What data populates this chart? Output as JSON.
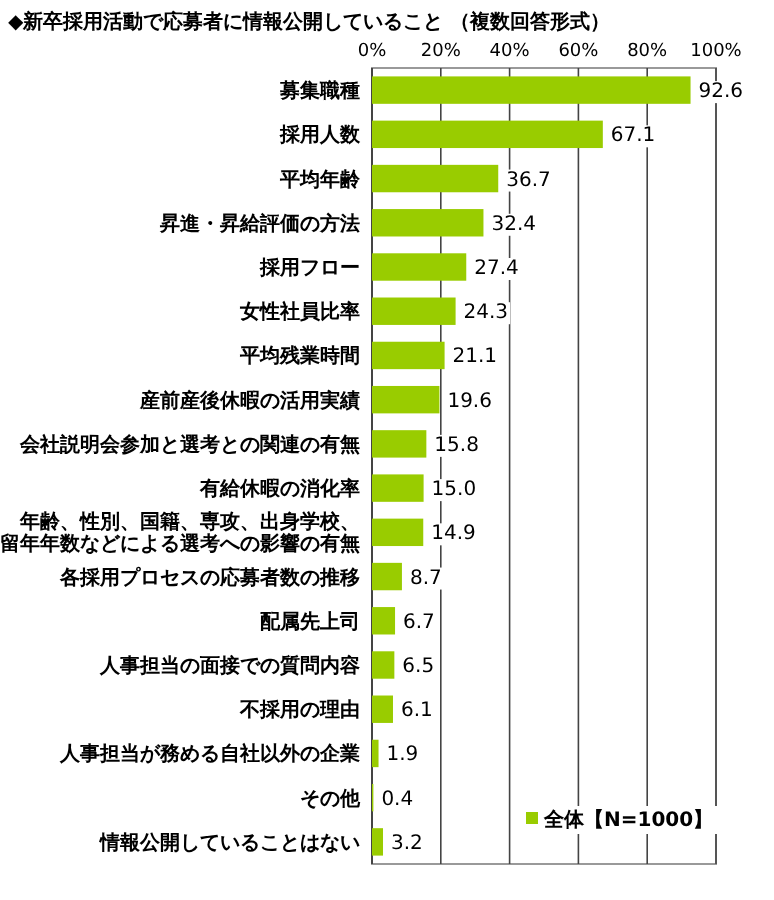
{
  "chart_data": {
    "type": "bar",
    "orientation": "horizontal",
    "title": "◆新卒採用活動で応募者に情報公開していること （複数回答形式）",
    "categories": [
      "募集職種",
      "採用人数",
      "平均年齢",
      "昇進・昇給評価の方法",
      "採用フロー",
      "女性社員比率",
      "平均残業時間",
      "産前産後休暇の活用実績",
      "会社説明会参加と選考との関連の有無",
      "有給休暇の消化率",
      "年齢、性別、国籍、専攻、出身学校、留年年数などによる選考への影響の有無",
      "各採用プロセスの応募者数の推移",
      "配属先上司",
      "人事担当の面接での質問内容",
      "不採用の理由",
      "人事担当が務める自社以外の企業",
      "その他",
      "情報公開していることはない"
    ],
    "series": [
      {
        "name": "全体【N=1000】",
        "color": "#99cc00",
        "values": [
          92.6,
          67.1,
          36.7,
          32.4,
          27.4,
          24.3,
          21.1,
          19.6,
          15.8,
          15.0,
          14.9,
          8.7,
          6.7,
          6.5,
          6.1,
          1.9,
          0.4,
          3.2
        ]
      }
    ],
    "value_labels": [
      "92.6",
      "67.1",
      "36.7",
      "32.4",
      "27.4",
      "24.3",
      "21.1",
      "19.6",
      "15.8",
      "15.0",
      "14.9",
      "8.7",
      "6.7",
      "6.5",
      "6.1",
      "1.9",
      "0.4",
      "3.2"
    ],
    "xlim": [
      0,
      100
    ],
    "xticks": [
      {
        "value": 0,
        "label": "0%"
      },
      {
        "value": 20,
        "label": "20%"
      },
      {
        "value": 40,
        "label": "40%"
      },
      {
        "value": 60,
        "label": "60%"
      },
      {
        "value": 80,
        "label": "80%"
      },
      {
        "value": 100,
        "label": "100%"
      }
    ],
    "grid": "x",
    "legend": "bottom right"
  }
}
